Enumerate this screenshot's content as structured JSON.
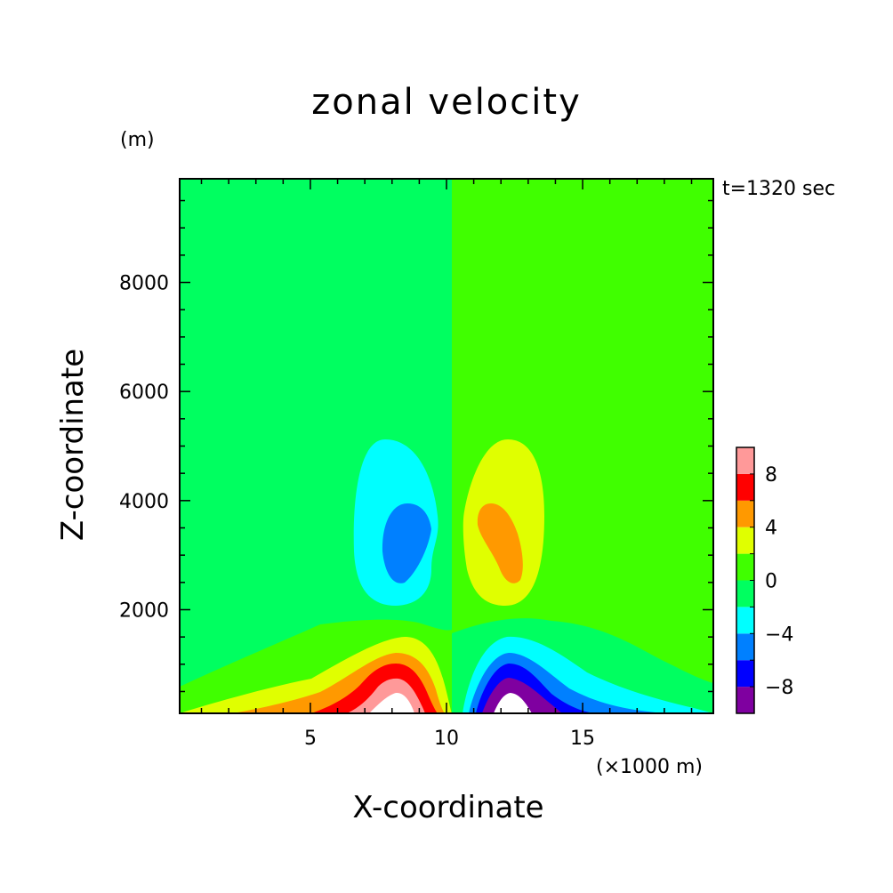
{
  "chart_data": {
    "type": "heatmap",
    "plot_style": "filled-contour",
    "title": "zonal velocity",
    "xlabel": "X-coordinate",
    "ylabel": "Z-coordinate",
    "x_unit": "(×1000 m)",
    "y_unit": "(m)",
    "time_label": "t=1320 sec",
    "xlim": [
      0.2,
      19.8
    ],
    "ylim": [
      100,
      9900
    ],
    "x_ticks": [
      5,
      10,
      15
    ],
    "y_ticks": [
      2000,
      4000,
      6000,
      8000
    ],
    "x_tick_labels": [
      "5",
      "10",
      "15"
    ],
    "y_tick_labels": [
      "2000",
      "4000",
      "6000",
      "8000"
    ],
    "colorbar": {
      "levels": [
        -10,
        -8,
        -6,
        -4,
        -2,
        0,
        2,
        4,
        6,
        8,
        10
      ],
      "colors": [
        "#7f00a0",
        "#0000ff",
        "#0080ff",
        "#00ffff",
        "#00ff60",
        "#40ff00",
        "#e0ff00",
        "#ff9900",
        "#ff0000",
        "#ff9999"
      ],
      "tick_labels": [
        "-8",
        "-4",
        "0",
        "4",
        "8"
      ],
      "tick_values": [
        -8,
        -4,
        0,
        4,
        8
      ]
    },
    "background_value_left": -1,
    "background_value_right": 1,
    "features": [
      {
        "kind": "upper-cell",
        "center_x": 8.1,
        "center_z": 3600,
        "extremum": -6
      },
      {
        "kind": "upper-cell",
        "center_x": 12.1,
        "center_z": 3600,
        "extremum": 6
      },
      {
        "kind": "surface-jet",
        "center_x": 8.3,
        "center_z": 100,
        "extremum": 11
      },
      {
        "kind": "surface-jet",
        "center_x": 12.3,
        "center_z": 100,
        "extremum": -11
      }
    ],
    "grid": false,
    "legend": "colorbar right"
  }
}
